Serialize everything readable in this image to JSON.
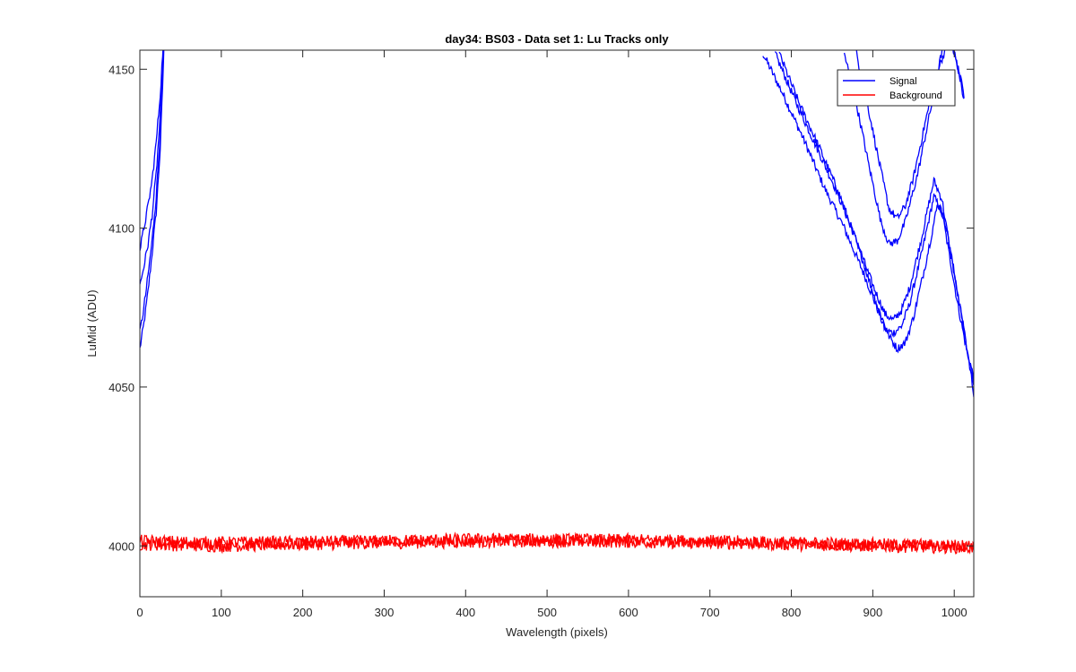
{
  "chart_data": {
    "type": "line",
    "title": "day34: BS03 - Data set 1: Lu Tracks only",
    "xlabel": "Wavelength (pixels)",
    "ylabel": "LuMid (ADU)",
    "xlim": [
      0,
      1024
    ],
    "ylim": [
      3984,
      4156
    ],
    "xticks": [
      "0",
      "100",
      "200",
      "300",
      "400",
      "500",
      "600",
      "700",
      "800",
      "900",
      "1000"
    ],
    "yticks": [
      "4000",
      "4050",
      "4100",
      "4150"
    ],
    "grid": false,
    "legend_location": "top-right",
    "legend": [
      "Signal",
      "Background"
    ],
    "colors": {
      "signal": "#0000ff",
      "background": "#ff0000"
    },
    "series": [
      {
        "name": "Signal",
        "color": "#0000ff",
        "curves": [
          {
            "left": {
              "x": [
                0,
                5,
                10,
                15,
                20,
                25,
                28,
                30
              ],
              "y": [
                4062,
                4070,
                4080,
                4092,
                4105,
                4125,
                4145,
                4160
              ]
            },
            "right": {
              "x": [
                765,
                790,
                815,
                840,
                865,
                890,
                905,
                915,
                925,
                935,
                945,
                960,
                975,
                985,
                995,
                1005,
                1015,
                1024
              ],
              "y": [
                4155,
                4142,
                4128,
                4113,
                4100,
                4085,
                4075,
                4068,
                4067,
                4069,
                4076,
                4092,
                4110,
                4105,
                4090,
                4075,
                4062,
                4053
              ]
            }
          },
          {
            "left": {
              "x": [
                0,
                5,
                10,
                15,
                20,
                25,
                28,
                30
              ],
              "y": [
                4067,
                4075,
                4085,
                4096,
                4110,
                4130,
                4148,
                4162
              ]
            },
            "right": {
              "x": [
                780,
                805,
                830,
                855,
                880,
                900,
                915,
                925,
                935,
                945,
                960,
                975,
                985,
                995,
                1005,
                1015,
                1024
              ],
              "y": [
                4155,
                4140,
                4126,
                4112,
                4096,
                4082,
                4073,
                4071,
                4074,
                4081,
                4097,
                4115,
                4109,
                4093,
                4078,
                4063,
                4051
              ]
            }
          },
          {
            "left": {
              "x": [
                0,
                5,
                10,
                15,
                20,
                25,
                28,
                30
              ],
              "y": [
                4082,
                4088,
                4095,
                4104,
                4117,
                4135,
                4150,
                4162
              ]
            },
            "right": {
              "x": [
                785,
                810,
                835,
                860,
                885,
                905,
                920,
                930,
                940,
                950,
                965,
                980,
                990,
                1000,
                1010,
                1018,
                1024
              ],
              "y": [
                4155,
                4139,
                4125,
                4110,
                4092,
                4076,
                4066,
                4062,
                4064,
                4072,
                4089,
                4108,
                4101,
                4086,
                4071,
                4058,
                4048
              ]
            }
          },
          {
            "left": {
              "x": [
                0,
                5,
                10,
                15,
                20,
                25,
                28,
                30
              ],
              "y": [
                4093,
                4100,
                4107,
                4115,
                4127,
                4142,
                4155,
                4162
              ]
            },
            "right": {
              "x": [
                880,
                895,
                910,
                920,
                930,
                940,
                950,
                965,
                980,
                995,
                1005,
                1012
              ],
              "y": [
                4155,
                4137,
                4118,
                4106,
                4103,
                4107,
                4116,
                4134,
                4150,
                4160,
                4150,
                4140
              ]
            }
          },
          {
            "left": null,
            "right": {
              "x": [
                865,
                880,
                895,
                910,
                920,
                930,
                940,
                955,
                970,
                985,
                995,
                1005,
                1012
              ],
              "y": [
                4155,
                4139,
                4120,
                4102,
                4095,
                4096,
                4102,
                4117,
                4136,
                4156,
                4160,
                4150,
                4142
              ]
            }
          }
        ]
      },
      {
        "name": "Background",
        "color": "#ff0000",
        "curves": [
          {
            "x": [
              0,
              100,
              200,
              300,
              400,
              500,
              600,
              700,
              800,
              900,
              1024
            ],
            "y": [
              4000.5,
              4000,
              4000.5,
              4001,
              4001.3,
              4001.5,
              4001.3,
              4001,
              4000.5,
              4000,
              3999.5
            ]
          },
          {
            "x": [
              0,
              100,
              200,
              300,
              400,
              500,
              600,
              700,
              800,
              900,
              1024
            ],
            "y": [
              4001.5,
              4001,
              4001.2,
              4001.5,
              4002,
              4002,
              4001.8,
              4001.5,
              4001,
              4000.5,
              4000
            ]
          }
        ]
      }
    ]
  }
}
